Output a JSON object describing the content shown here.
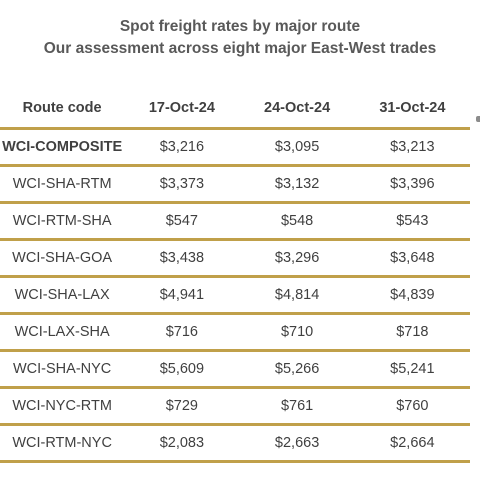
{
  "header": {
    "title": "Spot freight rates by major route",
    "subtitle": "Our assessment across eight major East-West trades"
  },
  "table": {
    "columns": [
      "Route code",
      "17-Oct-24",
      "24-Oct-24",
      "31-Oct-24"
    ],
    "rows": [
      {
        "route": "WCI-COMPOSITE",
        "values": [
          "$3,216",
          "$3,095",
          "$3,213"
        ]
      },
      {
        "route": "WCI-SHA-RTM",
        "values": [
          "$3,373",
          "$3,132",
          "$3,396"
        ]
      },
      {
        "route": "WCI-RTM-SHA",
        "values": [
          "$547",
          "$548",
          "$543"
        ]
      },
      {
        "route": "WCI-SHA-GOA",
        "values": [
          "$3,438",
          "$3,296",
          "$3,648"
        ]
      },
      {
        "route": "WCI-SHA-LAX",
        "values": [
          "$4,941",
          "$4,814",
          "$4,839"
        ]
      },
      {
        "route": "WCI-LAX-SHA",
        "values": [
          "$716",
          "$710",
          "$718"
        ]
      },
      {
        "route": "WCI-SHA-NYC",
        "values": [
          "$5,609",
          "$5,266",
          "$5,241"
        ]
      },
      {
        "route": "WCI-NYC-RTM",
        "values": [
          "$729",
          "$761",
          "$760"
        ]
      },
      {
        "route": "WCI-RTM-NYC",
        "values": [
          "$2,083",
          "$2,663",
          "$2,664"
        ]
      }
    ]
  },
  "colors": {
    "rule": "#c0a04a",
    "text": "#404040",
    "title": "#595959"
  }
}
